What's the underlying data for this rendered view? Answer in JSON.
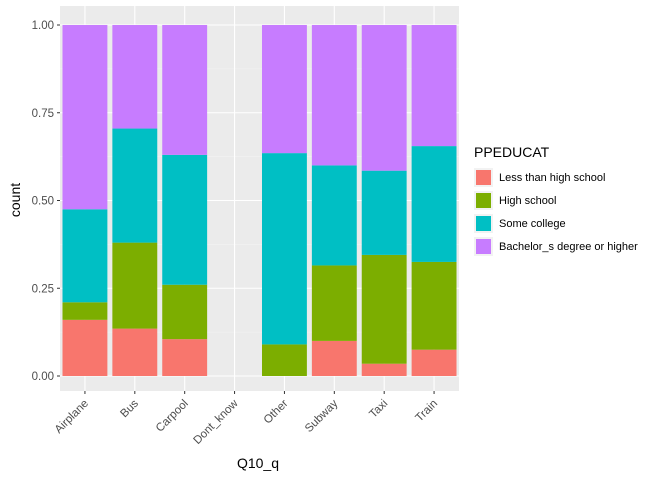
{
  "chart_data": {
    "type": "bar",
    "stacked": true,
    "position": "fill",
    "xlabel": "Q10_q",
    "ylabel": "count",
    "ylim": [
      0,
      1
    ],
    "yticks": [
      "0.00",
      "0.25",
      "0.50",
      "0.75",
      "1.00"
    ],
    "categories": [
      "Airplane",
      "Bus",
      "Carpool",
      "Dont_know",
      "Other",
      "Subway",
      "Taxi",
      "Train"
    ],
    "legend_title": "PPEDUCAT",
    "legend_position": "right",
    "grid": true,
    "series": [
      {
        "name": "Less than high school",
        "color": "#F8766D",
        "values": [
          0.16,
          0.135,
          0.105,
          0,
          0,
          0.1,
          0.035,
          0.075
        ]
      },
      {
        "name": "High school",
        "color": "#7CAE00",
        "values": [
          0.05,
          0.245,
          0.155,
          0,
          0.09,
          0.215,
          0.31,
          0.25
        ]
      },
      {
        "name": "Some college",
        "color": "#00BFC4",
        "values": [
          0.265,
          0.325,
          0.37,
          0,
          0.545,
          0.285,
          0.24,
          0.33
        ]
      },
      {
        "name": "Bachelor_s degree or higher",
        "color": "#C77CFF",
        "values": [
          0.525,
          0.295,
          0.37,
          0,
          0.365,
          0.4,
          0.415,
          0.345
        ]
      }
    ]
  }
}
